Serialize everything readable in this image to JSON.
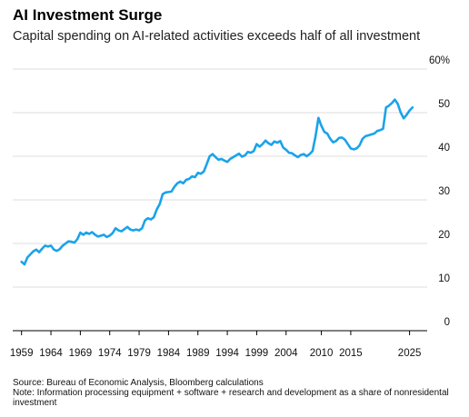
{
  "header": {
    "title": "AI Investment Surge",
    "subtitle": "Capital spending on AI-related activities exceeds half of all investment"
  },
  "footer": {
    "source": "Source: Bureau of Economic Analysis, Bloomberg calculations",
    "note": "Note: Information processing equipment + software + research and development as a share of nonresidental investment"
  },
  "colors": {
    "line": "#1aa3ea",
    "grid": "#d0d0d0",
    "axis": "#000000"
  },
  "chart_data": {
    "type": "line",
    "title": "AI Investment Surge",
    "subtitle": "Capital spending on AI-related activities exceeds half of all investment",
    "xlabel": "",
    "ylabel": "",
    "ylim": [
      0,
      60
    ],
    "xlim": [
      1957.5,
      2028
    ],
    "grid": true,
    "y_ticks": [
      0,
      10,
      20,
      30,
      40,
      50,
      60
    ],
    "y_tick_labels": [
      "0",
      "10",
      "20",
      "30",
      "40",
      "50",
      "60%"
    ],
    "x_ticks": [
      1959,
      1964,
      1969,
      1974,
      1979,
      1984,
      1989,
      1994,
      1999,
      2004,
      2010,
      2015,
      2025
    ],
    "x_tick_labels": [
      "1959",
      "1964",
      "1969",
      "1974",
      "1979",
      "1984",
      "1989",
      "1994",
      "1999",
      "2004",
      "2010",
      "2015",
      "2025"
    ],
    "series": [
      {
        "values": [
          [
            1959,
            15.8
          ],
          [
            1959.5,
            15.2
          ],
          [
            1960,
            16.8
          ],
          [
            1960.5,
            17.5
          ],
          [
            1961,
            18.2
          ],
          [
            1961.5,
            18.6
          ],
          [
            1962,
            18.0
          ],
          [
            1962.5,
            18.8
          ],
          [
            1963,
            19.5
          ],
          [
            1963.5,
            19.3
          ],
          [
            1964,
            19.5
          ],
          [
            1964.5,
            18.6
          ],
          [
            1965,
            18.3
          ],
          [
            1965.5,
            18.7
          ],
          [
            1966,
            19.5
          ],
          [
            1966.5,
            20.0
          ],
          [
            1967,
            20.5
          ],
          [
            1967.5,
            20.4
          ],
          [
            1968,
            20.2
          ],
          [
            1968.5,
            21.0
          ],
          [
            1969,
            22.5
          ],
          [
            1969.5,
            22.0
          ],
          [
            1970,
            22.5
          ],
          [
            1970.5,
            22.2
          ],
          [
            1971,
            22.6
          ],
          [
            1971.5,
            22.0
          ],
          [
            1972,
            21.6
          ],
          [
            1972.5,
            21.8
          ],
          [
            1973,
            22.0
          ],
          [
            1973.5,
            21.5
          ],
          [
            1974,
            21.8
          ],
          [
            1974.5,
            22.4
          ],
          [
            1975,
            23.5
          ],
          [
            1975.5,
            23.0
          ],
          [
            1976,
            22.8
          ],
          [
            1976.5,
            23.3
          ],
          [
            1977,
            23.8
          ],
          [
            1977.5,
            23.2
          ],
          [
            1978,
            23.0
          ],
          [
            1978.5,
            23.2
          ],
          [
            1979,
            23.0
          ],
          [
            1979.5,
            23.5
          ],
          [
            1980,
            25.3
          ],
          [
            1980.5,
            25.8
          ],
          [
            1981,
            25.5
          ],
          [
            1981.5,
            26.0
          ],
          [
            1982,
            27.8
          ],
          [
            1982.5,
            29.0
          ],
          [
            1983,
            31.3
          ],
          [
            1983.5,
            31.7
          ],
          [
            1984,
            31.8
          ],
          [
            1984.5,
            31.9
          ],
          [
            1985,
            33.0
          ],
          [
            1985.5,
            33.8
          ],
          [
            1986,
            34.2
          ],
          [
            1986.5,
            33.8
          ],
          [
            1987,
            34.6
          ],
          [
            1987.5,
            34.8
          ],
          [
            1988,
            35.4
          ],
          [
            1988.5,
            35.2
          ],
          [
            1989,
            36.2
          ],
          [
            1989.5,
            36.0
          ],
          [
            1990,
            36.5
          ],
          [
            1990.5,
            38.2
          ],
          [
            1991,
            40.0
          ],
          [
            1991.5,
            40.5
          ],
          [
            1992,
            39.8
          ],
          [
            1992.5,
            39.2
          ],
          [
            1993,
            39.4
          ],
          [
            1993.5,
            39.0
          ],
          [
            1994,
            38.7
          ],
          [
            1994.5,
            39.4
          ],
          [
            1995,
            39.8
          ],
          [
            1995.5,
            40.2
          ],
          [
            1996,
            40.6
          ],
          [
            1996.5,
            39.9
          ],
          [
            1997,
            40.2
          ],
          [
            1997.5,
            41.0
          ],
          [
            1998,
            40.8
          ],
          [
            1998.5,
            41.2
          ],
          [
            1999,
            42.8
          ],
          [
            1999.5,
            42.2
          ],
          [
            2000,
            42.8
          ],
          [
            2000.5,
            43.6
          ],
          [
            2001,
            43.0
          ],
          [
            2001.5,
            42.6
          ],
          [
            2002,
            43.4
          ],
          [
            2002.5,
            43.1
          ],
          [
            2003,
            43.5
          ],
          [
            2003.5,
            42.0
          ],
          [
            2004,
            41.5
          ],
          [
            2004.5,
            40.8
          ],
          [
            2005,
            40.7
          ],
          [
            2005.5,
            40.2
          ],
          [
            2006,
            39.8
          ],
          [
            2006.5,
            40.3
          ],
          [
            2007,
            40.5
          ],
          [
            2007.5,
            40.0
          ],
          [
            2008,
            40.5
          ],
          [
            2008.5,
            41.2
          ],
          [
            2009,
            44.5
          ],
          [
            2009.5,
            48.8
          ],
          [
            2010,
            47.0
          ],
          [
            2010.5,
            45.6
          ],
          [
            2011,
            45.2
          ],
          [
            2011.5,
            44.0
          ],
          [
            2012,
            43.2
          ],
          [
            2012.5,
            43.5
          ],
          [
            2013,
            44.2
          ],
          [
            2013.5,
            44.3
          ],
          [
            2014,
            43.8
          ],
          [
            2014.5,
            42.8
          ],
          [
            2015,
            41.8
          ],
          [
            2015.5,
            41.6
          ],
          [
            2016,
            41.8
          ],
          [
            2016.5,
            42.5
          ],
          [
            2017,
            44.0
          ],
          [
            2017.5,
            44.6
          ],
          [
            2018,
            44.8
          ],
          [
            2018.5,
            45.0
          ],
          [
            2019,
            45.2
          ],
          [
            2019.5,
            45.8
          ],
          [
            2020,
            46.0
          ],
          [
            2020.5,
            46.3
          ],
          [
            2021,
            51.2
          ],
          [
            2021.5,
            51.6
          ],
          [
            2022,
            52.2
          ],
          [
            2022.5,
            53.0
          ],
          [
            2023,
            52.0
          ],
          [
            2023.5,
            50.0
          ],
          [
            2024,
            48.7
          ],
          [
            2024.5,
            49.5
          ],
          [
            2025,
            50.5
          ],
          [
            2025.5,
            51.2
          ]
        ]
      }
    ]
  }
}
